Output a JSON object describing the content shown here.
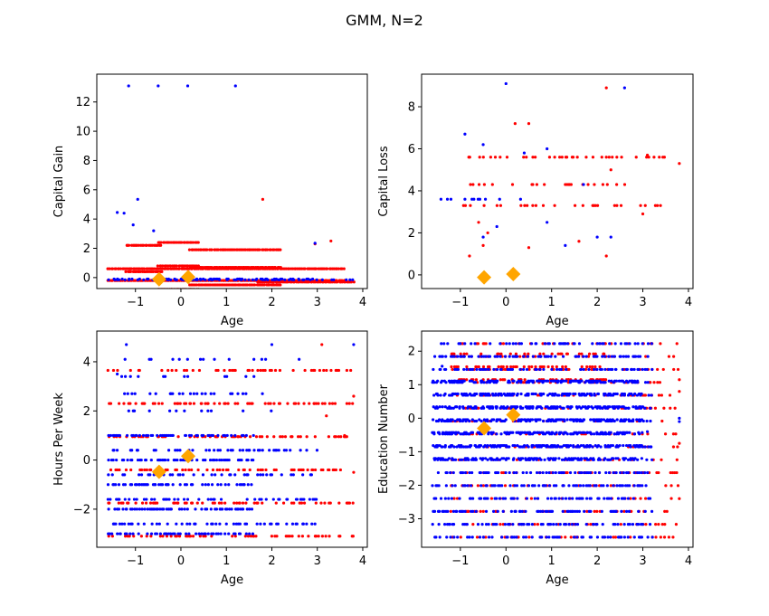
{
  "figure": {
    "title": "GMM, N=2"
  },
  "colors": {
    "cluster_a": "#ff0000",
    "cluster_b": "#0000ff",
    "centroid": "#ffa500",
    "axes": "#000000"
  },
  "chart_data": [
    {
      "type": "scatter",
      "xlabel": "Age",
      "ylabel": "Capital Gain",
      "xlim": [
        -1.85,
        4.1
      ],
      "ylim": [
        -0.75,
        13.9
      ],
      "xticks": [
        -1,
        0,
        1,
        2,
        3,
        4
      ],
      "yticks": [
        0,
        2,
        4,
        6,
        8,
        10,
        12
      ],
      "series": [
        {
          "color": "#ff0000",
          "marker": "dot",
          "rows": [
            [
              -1.2,
              -0.4,
              -1.4,
              2.8,
              1.8,
              13.1
            ],
            [
              -0.5,
              0.4,
              -0.8,
              2.8,
              1.6,
              3.6
            ],
            [
              0.2,
              2.2,
              -0.5,
              2.8,
              1.2,
              2.5
            ],
            [
              1.7,
              3.8,
              -0.3,
              0.5,
              1.6,
              2.0
            ],
            [
              -1.6,
              3.6,
              -0.2,
              0.6,
              0.8,
              1.5
            ]
          ],
          "points": [
            [
              1.8,
              5.35
            ],
            [
              2.95,
              2.3
            ],
            [
              3.3,
              2.5
            ]
          ]
        },
        {
          "color": "#0000ff",
          "marker": "dot",
          "rows": [
            [
              -1.6,
              3.8,
              -0.15,
              0.9,
              2.2,
              0.35
            ],
            [
              -1.5,
              3.0,
              -0.1,
              0.4,
              2.0,
              0.25
            ],
            [
              -1.3,
              2.5,
              -0.1,
              0.2,
              1.2,
              0.2
            ]
          ],
          "points": [
            [
              -1.4,
              4.45
            ],
            [
              -1.25,
              4.4
            ],
            [
              -0.95,
              5.35
            ],
            [
              -1.15,
              13.1
            ],
            [
              -0.5,
              13.1
            ],
            [
              -1.05,
              3.6
            ],
            [
              -0.6,
              3.2
            ],
            [
              2.95,
              2.35
            ],
            [
              0.15,
              13.1
            ],
            [
              1.2,
              13.1
            ]
          ]
        }
      ],
      "centroids": [
        [
          -0.48,
          -0.12
        ],
        [
          0.16,
          0.04
        ]
      ]
    },
    {
      "type": "scatter",
      "xlabel": "Age",
      "ylabel": "Capital Loss",
      "xlim": [
        -1.85,
        4.1
      ],
      "ylim": [
        -0.65,
        9.55
      ],
      "xticks": [
        -1,
        0,
        1,
        2,
        3,
        4
      ],
      "yticks": [
        0,
        2,
        4,
        6,
        8
      ],
      "series": [
        {
          "color": "#ff0000",
          "marker": "dot",
          "rows": [
            [
              -1.0,
              3.6,
              3.3,
              5.9,
              2.3,
              0.3
            ],
            [
              -0.8,
              2.6,
              4.3,
              4.8,
              3.2,
              0.2
            ]
          ],
          "points": [
            [
              2.2,
              8.9
            ],
            [
              3.8,
              5.3
            ],
            [
              -0.8,
              0.9
            ],
            [
              -0.5,
              1.4
            ],
            [
              0.5,
              1.3
            ],
            [
              1.6,
              1.6
            ],
            [
              2.2,
              0.9
            ],
            [
              0.5,
              7.2
            ],
            [
              0.2,
              7.2
            ],
            [
              -0.6,
              2.5
            ],
            [
              -0.4,
              2.0
            ],
            [
              3.1,
              5.7
            ],
            [
              3.0,
              2.9
            ],
            [
              2.3,
              5.0
            ]
          ]
        },
        {
          "color": "#0000ff",
          "marker": "dot",
          "rows": [
            [
              -1.6,
              3.8,
              -0.2,
              -0.2,
              2.5,
              0.0
            ],
            [
              -1.6,
              0.5,
              3.6,
              4.2,
              1.5,
              0.25
            ]
          ],
          "points": [
            [
              0.0,
              9.1
            ],
            [
              2.6,
              8.9
            ],
            [
              -0.9,
              6.7
            ],
            [
              -0.5,
              6.2
            ],
            [
              0.4,
              5.8
            ],
            [
              0.9,
              6.0
            ],
            [
              1.3,
              1.4
            ],
            [
              2.0,
              1.8
            ],
            [
              2.3,
              1.8
            ],
            [
              -0.5,
              1.8
            ],
            [
              -0.2,
              2.3
            ],
            [
              0.9,
              2.5
            ],
            [
              1.7,
              4.3
            ]
          ]
        }
      ],
      "centroids": [
        [
          -0.48,
          -0.12
        ],
        [
          0.16,
          0.04
        ]
      ]
    },
    {
      "type": "scatter",
      "xlabel": "Age",
      "ylabel": "Hours Per Week",
      "xlim": [
        -1.85,
        4.1
      ],
      "ylim": [
        -3.55,
        5.25
      ],
      "xticks": [
        -1,
        0,
        1,
        2,
        3,
        4
      ],
      "yticks": [
        -2,
        0,
        2,
        4
      ],
      "series": [
        {
          "color": "#ff0000",
          "marker": "dot",
          "rows": [
            [
              -1.6,
              3.8,
              -3.1,
              4.7,
              1.35,
              0.35
            ]
          ],
          "points": [
            [
              3.8,
              2.6
            ],
            [
              3.6,
              1.0
            ],
            [
              3.8,
              -0.5
            ],
            [
              3.2,
              1.8
            ],
            [
              3.1,
              4.7
            ]
          ]
        },
        {
          "color": "#0000ff",
          "marker": "dot",
          "rows": [
            [
              -1.6,
              1.6,
              -3.0,
              1.6,
              1.0,
              0.55
            ],
            [
              -1.6,
              3.0,
              -2.6,
              1.2,
              1.0,
              0.35
            ],
            [
              -1.4,
              2.0,
              2.0,
              4.7,
              0.7,
              0.12
            ]
          ],
          "points": [
            [
              3.8,
              4.7
            ],
            [
              -1.2,
              4.7
            ],
            [
              -1.4,
              3.5
            ],
            [
              2.6,
              4.1
            ],
            [
              2.0,
              4.7
            ]
          ]
        }
      ],
      "centroids": [
        [
          -0.48,
          -0.48
        ],
        [
          0.16,
          0.16
        ]
      ]
    },
    {
      "type": "scatter",
      "xlabel": "Age",
      "ylabel": "Education Number",
      "xlim": [
        -1.85,
        4.1
      ],
      "ylim": [
        -3.85,
        2.6
      ],
      "xticks": [
        -1,
        0,
        1,
        2,
        3,
        4
      ],
      "yticks": [
        -3,
        -2,
        -1,
        0,
        1,
        2
      ],
      "series": [
        {
          "color": "#ff0000",
          "marker": "dot",
          "rows": [
            [
              -1.2,
              3.8,
              -3.55,
              2.3,
              0.385,
              0.2
            ],
            [
              -1.2,
              2.2,
              1.15,
              2.3,
              0.385,
              0.35
            ]
          ],
          "points": [
            [
              3.8,
              1.15
            ],
            [
              3.8,
              0.8
            ],
            [
              3.8,
              -2.4
            ],
            [
              3.8,
              -0.75
            ],
            [
              3.6,
              0.3
            ]
          ]
        },
        {
          "color": "#0000ff",
          "marker": "dot",
          "rows": [
            [
              -1.6,
              3.2,
              -3.55,
              2.3,
              0.385,
              0.45
            ],
            [
              -1.6,
              3.0,
              -1.2,
              1.15,
              0.385,
              0.6
            ]
          ],
          "points": [
            [
              -1.4,
              1.55
            ],
            [
              -1.3,
              -3.55
            ],
            [
              3.8,
              -0.1
            ],
            [
              3.8,
              0.0
            ],
            [
              3.1,
              -0.4
            ]
          ]
        }
      ],
      "centroids": [
        [
          -0.48,
          -0.3
        ],
        [
          0.16,
          0.1
        ]
      ]
    }
  ]
}
